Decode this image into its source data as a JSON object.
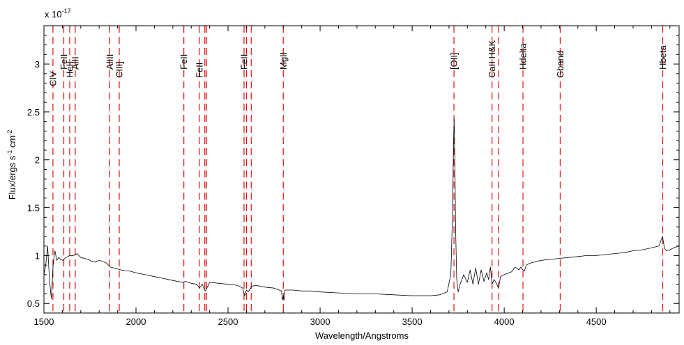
{
  "chart_data": {
    "type": "line",
    "title": "",
    "xlabel": "Wavelength/Angstroms",
    "ylabel": {
      "main": "Flux/ergs s",
      "exp1": "-1",
      "mid": " cm",
      "exp2": "-2"
    },
    "y_multiplier": {
      "base": "x 10",
      "exp": "-17"
    },
    "xlim": [
      1500,
      4950
    ],
    "ylim": [
      0.4,
      3.4
    ],
    "xticks": [
      1500,
      2000,
      2500,
      3000,
      3500,
      4000,
      4500
    ],
    "xtick_labels": [
      "1500",
      "2000",
      "2500",
      "3000",
      "3500",
      "4000",
      "4500"
    ],
    "yticks": [
      0.5,
      1,
      1.5,
      2,
      2.5,
      3
    ],
    "ytick_labels": [
      "0.5",
      "1",
      "1.5",
      "2",
      "2.5",
      "3"
    ],
    "grid": false,
    "colors": {
      "spectrum": "#000000",
      "line_markers": "#dd1111"
    },
    "spectral_lines": [
      {
        "label": "CIV",
        "x": 1549,
        "row": 2
      },
      {
        "label": "FeII",
        "x": 1608,
        "row": 0
      },
      {
        "label": "HeII",
        "x": 1640,
        "row": 1
      },
      {
        "label": "AlII",
        "x": 1670,
        "row": 0
      },
      {
        "label": "AlIII",
        "x": 1857,
        "row": 0
      },
      {
        "label": "CIII]",
        "x": 1909,
        "row": 1
      },
      {
        "label": "FeII",
        "x": 2260,
        "row": 0
      },
      {
        "label": "FeII",
        "x": 2344,
        "row": 1
      },
      {
        "label": "",
        "x": 2374,
        "row": 0
      },
      {
        "label": "",
        "x": 2383,
        "row": 0
      },
      {
        "label": "FeII",
        "x": 2587,
        "row": 0
      },
      {
        "label": "",
        "x": 2600,
        "row": 0
      },
      {
        "label": "",
        "x": 2626,
        "row": 0
      },
      {
        "label": "MgII",
        "x": 2800,
        "row": 0
      },
      {
        "label": "[OII]",
        "x": 3727,
        "row": 0
      },
      {
        "label": "CaII H&K",
        "x": 3934,
        "row": 1
      },
      {
        "label": "",
        "x": 3969,
        "row": 0
      },
      {
        "label": "Hdelta",
        "x": 4102,
        "row": 0
      },
      {
        "label": "Gband",
        "x": 4304,
        "row": 1
      },
      {
        "label": "Hbeta",
        "x": 4861,
        "row": 0
      }
    ],
    "series": [
      {
        "x": [
          1500,
          1510,
          1520,
          1530,
          1540,
          1550,
          1560,
          1570,
          1580,
          1590,
          1600,
          1620,
          1640,
          1660,
          1680,
          1700,
          1720,
          1740,
          1760,
          1780,
          1800,
          1820,
          1840,
          1860,
          1880,
          1900,
          1920,
          1940,
          1960,
          1980,
          2000,
          2050,
          2100,
          2150,
          2200,
          2250,
          2270,
          2300,
          2330,
          2345,
          2360,
          2376,
          2385,
          2400,
          2450,
          2500,
          2550,
          2580,
          2590,
          2600,
          2610,
          2620,
          2628,
          2650,
          2700,
          2750,
          2790,
          2796,
          2800,
          2804,
          2810,
          2850,
          2900,
          2950,
          3000,
          3100,
          3200,
          3300,
          3400,
          3500,
          3600,
          3650,
          3690,
          3710,
          3720,
          3725,
          3728,
          3732,
          3736,
          3742,
          3750,
          3760,
          3780,
          3800,
          3815,
          3830,
          3845,
          3860,
          3875,
          3890,
          3905,
          3915,
          3925,
          3934,
          3945,
          3955,
          3969,
          3980,
          4000,
          4040,
          4060,
          4080,
          4090,
          4102,
          4110,
          4120,
          4140,
          4160,
          4200,
          4250,
          4300,
          4350,
          4400,
          4450,
          4500,
          4550,
          4600,
          4650,
          4700,
          4750,
          4800,
          4840,
          4860,
          4870,
          4880,
          4900,
          4920,
          4950
        ],
        "y": [
          0.8,
          0.9,
          1.1,
          0.75,
          0.55,
          0.9,
          1.05,
          0.95,
          0.98,
          0.96,
          0.95,
          0.98,
          1.0,
          1.0,
          1.02,
          0.98,
          0.97,
          0.96,
          0.94,
          0.93,
          0.95,
          0.94,
          0.92,
          0.88,
          0.87,
          0.86,
          0.85,
          0.84,
          0.84,
          0.83,
          0.82,
          0.8,
          0.78,
          0.76,
          0.74,
          0.72,
          0.73,
          0.71,
          0.7,
          0.66,
          0.7,
          0.63,
          0.66,
          0.72,
          0.71,
          0.7,
          0.69,
          0.66,
          0.58,
          0.64,
          0.62,
          0.65,
          0.68,
          0.69,
          0.67,
          0.66,
          0.63,
          0.54,
          0.58,
          0.53,
          0.64,
          0.64,
          0.63,
          0.63,
          0.62,
          0.61,
          0.6,
          0.6,
          0.59,
          0.58,
          0.58,
          0.59,
          0.62,
          0.8,
          1.5,
          2.2,
          2.43,
          2.0,
          1.3,
          0.75,
          0.62,
          0.7,
          0.8,
          0.72,
          0.85,
          0.7,
          0.87,
          0.7,
          0.85,
          0.73,
          0.82,
          0.75,
          0.88,
          0.7,
          0.75,
          0.72,
          0.66,
          0.78,
          0.8,
          0.83,
          0.88,
          0.85,
          0.88,
          0.85,
          0.84,
          0.9,
          0.92,
          0.93,
          0.95,
          0.96,
          0.97,
          0.98,
          0.99,
          1.0,
          1.0,
          1.01,
          1.02,
          1.03,
          1.05,
          1.06,
          1.08,
          1.1,
          1.2,
          1.08,
          1.05,
          1.06,
          1.08,
          1.1
        ]
      }
    ]
  }
}
